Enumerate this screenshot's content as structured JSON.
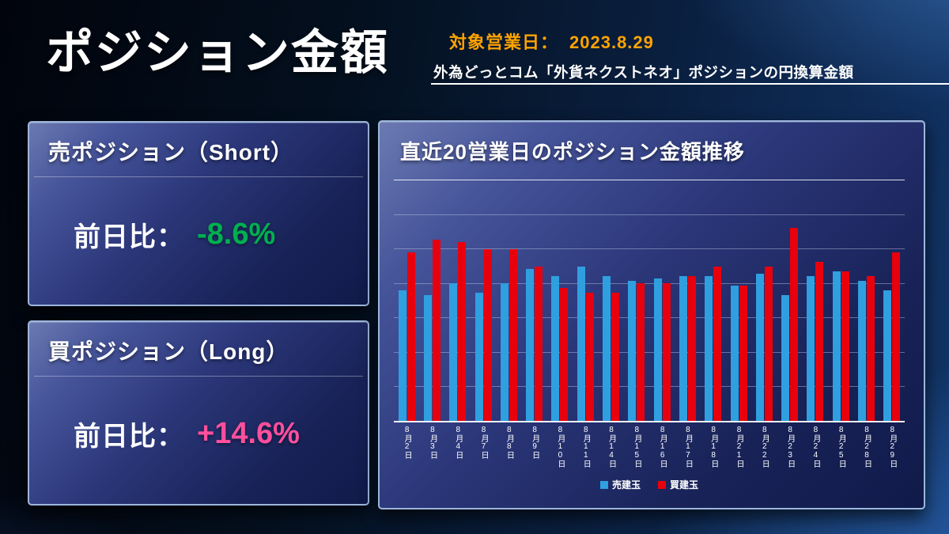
{
  "header": {
    "title": "ポジション金額",
    "date_label": "対象営業日：",
    "date_value": "2023.8.29",
    "subtitle": "外為どっとコム「外貨ネクストネオ」ポジションの円換算金額"
  },
  "short_panel": {
    "title": "売ポジション（Short）",
    "label": "前日比：",
    "value": "-8.6%",
    "value_color": "#00b050"
  },
  "long_panel": {
    "title": "買ポジション（Long）",
    "label": "前日比：",
    "value": "+14.6%",
    "value_color": "#ff4f9e"
  },
  "chart_panel": {
    "title": "直近20営業日のポジション金額推移"
  },
  "chart_data": {
    "type": "bar",
    "title": "直近20営業日のポジション金額推移",
    "categories": [
      "8月2日",
      "8月3日",
      "8月4日",
      "8月7日",
      "8月8日",
      "8月9日",
      "8月10日",
      "8月11日",
      "8月14日",
      "8月15日",
      "8月16日",
      "8月17日",
      "8月18日",
      "8月21日",
      "8月22日",
      "8月23日",
      "8月24日",
      "8月25日",
      "8月28日",
      "8月29日"
    ],
    "series": [
      {
        "name": "売建玉",
        "color": "#2f9fe0",
        "values": [
          54,
          52,
          57,
          53,
          57,
          63,
          60,
          64,
          60,
          58,
          59,
          60,
          60,
          56,
          61,
          52,
          60,
          62,
          58,
          54
        ]
      },
      {
        "name": "買建玉",
        "color": "#e8000d",
        "values": [
          70,
          75,
          74,
          71,
          71,
          64,
          55,
          53,
          53,
          57,
          57,
          60,
          64,
          56,
          64,
          80,
          66,
          62,
          60,
          70
        ]
      }
    ],
    "ylim": [
      0,
      100
    ],
    "y_tick_labels": [],
    "values_note": "relative bar heights (no y-axis labels are shown in the chart)",
    "grid": true,
    "gridline_count": 7,
    "legend_position": "bottom"
  },
  "colors": {
    "date_orange": "#ffa400",
    "short_value_green": "#00b050",
    "long_value_pink": "#ff4f9e",
    "sell_bar_blue": "#2f9fe0",
    "buy_bar_red": "#e8000d",
    "panel_border": "#9cb6dc",
    "background_navy": "#0a1f3f"
  }
}
